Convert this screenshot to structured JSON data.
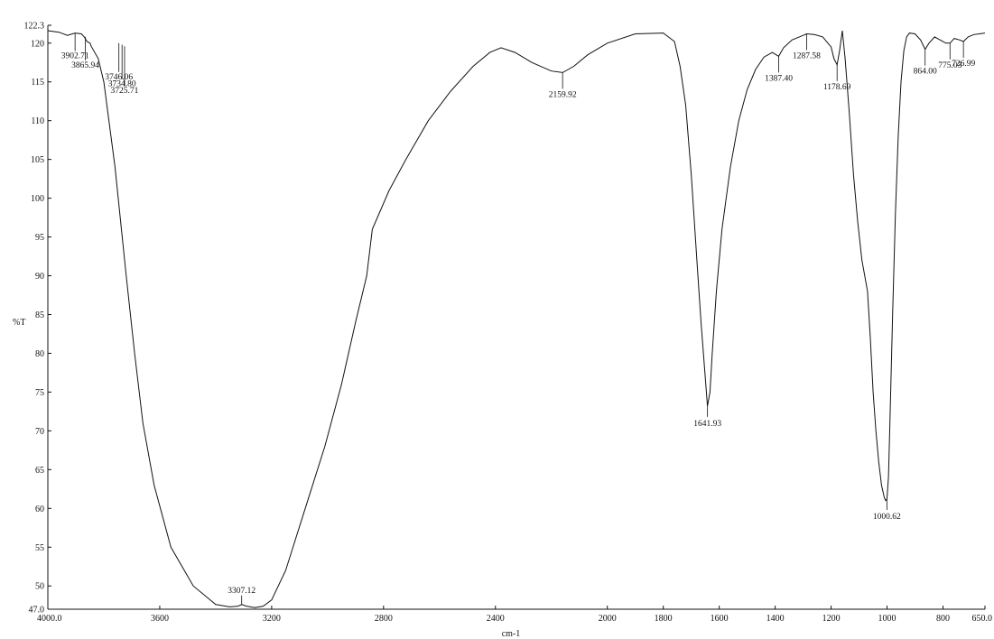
{
  "chart_data": {
    "type": "line",
    "title": "",
    "xlabel": "cm-1",
    "ylabel": "%T",
    "xlim": [
      4000.0,
      650.0
    ],
    "ylim": [
      47.0,
      122.3
    ],
    "x_reversed": true,
    "grid": false,
    "x_ticks": [
      {
        "value": 4000.0,
        "label": "4000.0"
      },
      {
        "value": 3600,
        "label": "3600"
      },
      {
        "value": 3200,
        "label": "3200"
      },
      {
        "value": 2800,
        "label": "2800"
      },
      {
        "value": 2400,
        "label": "2400"
      },
      {
        "value": 2000,
        "label": "2000"
      },
      {
        "value": 1800,
        "label": "1800"
      },
      {
        "value": 1600,
        "label": "1600"
      },
      {
        "value": 1400,
        "label": "1400"
      },
      {
        "value": 1200,
        "label": "1200"
      },
      {
        "value": 1000,
        "label": "1000"
      },
      {
        "value": 800,
        "label": "800"
      },
      {
        "value": 650.0,
        "label": "650.0"
      }
    ],
    "y_ticks": [
      {
        "value": 47.0,
        "label": "47.0"
      },
      {
        "value": 50,
        "label": "50"
      },
      {
        "value": 55,
        "label": "55"
      },
      {
        "value": 60,
        "label": "60"
      },
      {
        "value": 65,
        "label": "65"
      },
      {
        "value": 70,
        "label": "70"
      },
      {
        "value": 75,
        "label": "75"
      },
      {
        "value": 80,
        "label": "80"
      },
      {
        "value": 85,
        "label": "85"
      },
      {
        "value": 90,
        "label": "90"
      },
      {
        "value": 95,
        "label": "95"
      },
      {
        "value": 100,
        "label": "100"
      },
      {
        "value": 105,
        "label": "105"
      },
      {
        "value": 110,
        "label": "110"
      },
      {
        "value": 115,
        "label": "115"
      },
      {
        "value": 120,
        "label": "120"
      },
      {
        "value": 122.3,
        "label": "122.3"
      }
    ],
    "series": [
      {
        "color": "#111111",
        "x": [
          4000,
          3960,
          3930,
          3902.71,
          3880,
          3870,
          3860,
          3849,
          3845,
          3820,
          3800,
          3760,
          3720,
          3690,
          3660,
          3620,
          3560,
          3480,
          3400,
          3350,
          3320,
          3307.12,
          3290,
          3260,
          3230,
          3200,
          3150,
          3080,
          3010,
          2950,
          2900,
          2860,
          2840,
          2780,
          2720,
          2640,
          2560,
          2480,
          2420,
          2380,
          2330,
          2270,
          2200,
          2159.92,
          2120,
          2070,
          2000,
          1900,
          1800,
          1760,
          1740,
          1720,
          1700,
          1680,
          1665,
          1650,
          1641.93,
          1633,
          1625,
          1610,
          1590,
          1560,
          1530,
          1500,
          1470,
          1440,
          1410,
          1387.4,
          1370,
          1340,
          1300,
          1287.58,
          1260,
          1230,
          1200,
          1190,
          1178.69,
          1170,
          1160,
          1150,
          1135,
          1120,
          1105,
          1090,
          1070,
          1060,
          1050,
          1040,
          1030,
          1020,
          1010,
          1005,
          1000.62,
          995,
          990,
          980,
          970,
          960,
          950,
          940,
          930,
          920,
          900,
          880,
          864,
          850,
          830,
          810,
          790,
          775.03,
          760,
          740,
          726.99,
          710,
          690,
          670,
          650
        ],
        "y": [
          121.6,
          121.4,
          121.0,
          121.3,
          121.2,
          120.8,
          120.2,
          120.0,
          119.6,
          118.0,
          115.0,
          104.0,
          90.0,
          80.0,
          71.0,
          63.0,
          55.0,
          50.0,
          47.6,
          47.3,
          47.4,
          47.6,
          47.4,
          47.2,
          47.4,
          48.2,
          52.0,
          60.0,
          68.0,
          76.0,
          84.0,
          90.0,
          96.0,
          101.0,
          105.0,
          110.0,
          113.8,
          117.0,
          118.8,
          119.4,
          118.8,
          117.5,
          116.4,
          116.2,
          117.0,
          118.5,
          120.0,
          121.2,
          121.3,
          120.2,
          117.0,
          112.0,
          103.0,
          92.0,
          84.0,
          77.0,
          73.2,
          75.0,
          80.0,
          88.0,
          96.0,
          104.0,
          110.0,
          114.0,
          116.6,
          118.2,
          118.8,
          118.3,
          119.4,
          120.4,
          121.0,
          121.2,
          121.1,
          120.8,
          119.5,
          118.0,
          117.2,
          119.0,
          121.6,
          118.0,
          111.0,
          103.0,
          97.0,
          92.0,
          88.0,
          82.0,
          75.0,
          70.0,
          66.0,
          63.0,
          61.4,
          61.0,
          61.2,
          64.0,
          71.0,
          85.0,
          98.0,
          108.0,
          115.0,
          119.0,
          120.8,
          121.3,
          121.2,
          120.4,
          119.2,
          120.0,
          120.8,
          120.4,
          120.0,
          120.0,
          120.6,
          120.4,
          120.2,
          120.8,
          121.1,
          121.2,
          121.3
        ]
      }
    ],
    "annotations": [
      {
        "x": 3902.71,
        "y": 121.3,
        "label": "3902.71"
      },
      {
        "x": 3865.94,
        "y": 120.8,
        "label": "3865.94"
      },
      {
        "x": 3746.06,
        "y": 120.0,
        "label": "3746.06"
      },
      {
        "x": 3734.8,
        "y": 119.8,
        "label": "3734.80"
      },
      {
        "x": 3725.71,
        "y": 119.6,
        "label": "3725.71"
      },
      {
        "x": 3307.12,
        "y": 47.6,
        "label": "3307.12"
      },
      {
        "x": 2159.92,
        "y": 116.2,
        "label": "2159.92"
      },
      {
        "x": 1641.93,
        "y": 73.2,
        "label": "1641.93"
      },
      {
        "x": 1387.4,
        "y": 118.3,
        "label": "1387.40"
      },
      {
        "x": 1287.58,
        "y": 121.2,
        "label": "1287.58"
      },
      {
        "x": 1178.69,
        "y": 117.2,
        "label": "1178.69"
      },
      {
        "x": 1000.62,
        "y": 61.2,
        "label": "1000.62"
      },
      {
        "x": 864.0,
        "y": 119.2,
        "label": "864.00"
      },
      {
        "x": 775.03,
        "y": 120.0,
        "label": "775.03"
      },
      {
        "x": 726.99,
        "y": 120.2,
        "label": "726.99"
      }
    ]
  }
}
